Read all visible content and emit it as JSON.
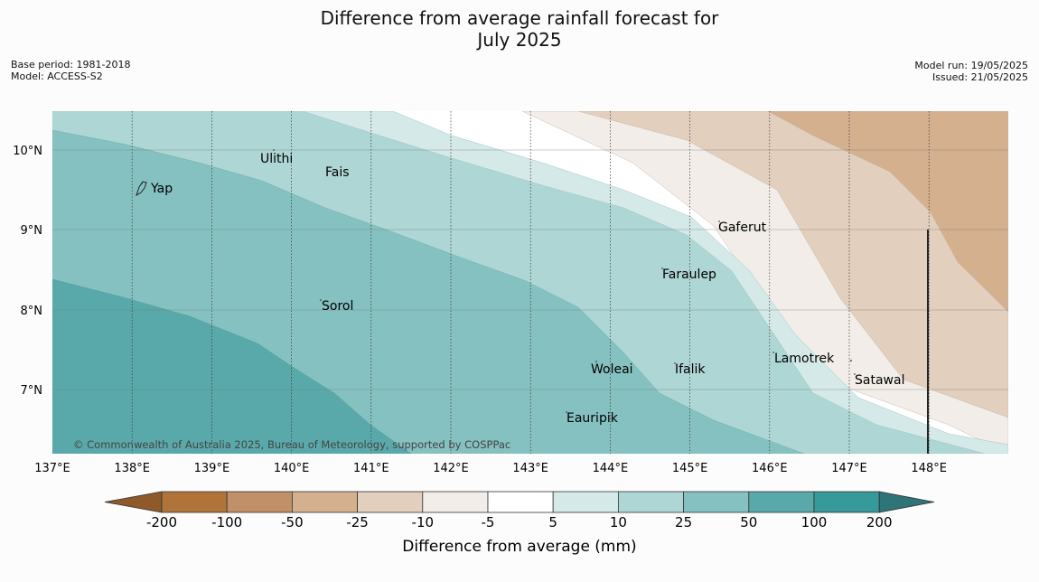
{
  "title": {
    "line1": "Difference from average rainfall forecast for",
    "line2": "July 2025"
  },
  "meta_left": {
    "base_period": "Base period: 1981-2018",
    "model": "Model: ACCESS-S2"
  },
  "meta_right": {
    "model_run": "Model run: 19/05/2025",
    "issued": "Issued: 21/05/2025"
  },
  "map": {
    "lon_labels": [
      "137°E",
      "138°E",
      "139°E",
      "140°E",
      "141°E",
      "142°E",
      "143°E",
      "144°E",
      "145°E",
      "146°E",
      "147°E",
      "148°E"
    ],
    "lat_labels": [
      "10°N",
      "9°N",
      "8°N",
      "7°N"
    ],
    "credit": "© Commonwealth of Australia 2025, Bureau of Meteorology, supported by COSPPac",
    "places": [
      {
        "name": "Ulithi"
      },
      {
        "name": "Fais"
      },
      {
        "name": "Yap"
      },
      {
        "name": "Gaferut"
      },
      {
        "name": "Faraulep"
      },
      {
        "name": "Sorol"
      },
      {
        "name": "Lamotrek"
      },
      {
        "name": "Woleai"
      },
      {
        "name": "Ifalik"
      },
      {
        "name": "Satawal"
      },
      {
        "name": "Eauripik"
      }
    ]
  },
  "colorbar": {
    "title": "Difference from average (mm)",
    "ticks": [
      "-200",
      "-100",
      "-50",
      "-25",
      "-10",
      "-5",
      "5",
      "10",
      "25",
      "50",
      "100",
      "200"
    ],
    "colors": {
      "below_min": "#8e5a2a",
      "m200_m100": "#b0743a",
      "m100_m50": "#c19068",
      "m50_m25": "#d4b08f",
      "m25_m10": "#e3cfbe",
      "m10_m5": "#f2ede8",
      "m5_p5": "#ffffff",
      "p5_p10": "#d5e9e8",
      "p10_p25": "#aed6d5",
      "p25_p50": "#85c1c0",
      "p50_p100": "#5aa9aa",
      "p100_p200": "#36999a",
      "above_max": "#2f7577"
    }
  }
}
